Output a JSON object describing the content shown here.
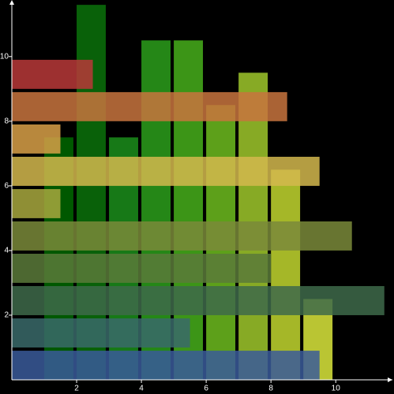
{
  "chart_data": {
    "type": "bar",
    "xlim": [
      0,
      11.75
    ],
    "ylim": [
      0,
      11.75
    ],
    "xticks": [
      2,
      4,
      6,
      8,
      10
    ],
    "yticks": [
      2,
      4,
      6,
      8,
      10
    ],
    "series": [
      {
        "orientation": "vertical",
        "x": [
          1,
          2,
          3,
          4,
          5,
          6,
          7,
          8,
          9
        ],
        "values": [
          7.5,
          11.6,
          7.5,
          10.5,
          10.5,
          8.5,
          9.5,
          6.5,
          2.5
        ],
        "colors": [
          "#006400",
          "#0a6e0a",
          "#1a8a1a",
          "#2a9a1a",
          "#44aa1a",
          "#6ab61e",
          "#9ac22a",
          "#bcd02e",
          "#d4e03a"
        ]
      },
      {
        "orientation": "horizontal",
        "y": [
          0,
          1,
          2,
          3,
          4,
          5,
          6,
          7,
          8,
          9
        ],
        "values": [
          9.5,
          5.5,
          11.5,
          8,
          10.5,
          1.5,
          9.5,
          1.5,
          8.5,
          2.5
        ],
        "colors": [
          "#3a5a9a",
          "#3a6a6a",
          "#3e6a4a",
          "#5a7a3a",
          "#7a8a3a",
          "#a8a83e",
          "#d4b84e",
          "#d8a048",
          "#c8743e",
          "#b83838"
        ]
      }
    ]
  }
}
